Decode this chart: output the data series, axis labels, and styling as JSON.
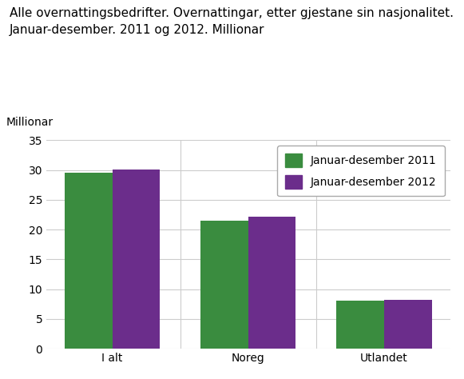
{
  "title_line1": "Alle overnattingsbedrifter. Overnattingar, etter gjestane sin nasjonalitet.",
  "title_line2": "Januar-desember. 2011 og 2012. Millionar",
  "ylabel": "Millionar",
  "categories": [
    "I alt",
    "Noreg",
    "Utlandet"
  ],
  "series": [
    {
      "label": "Januar-desember 2011",
      "color": "#3a8c3f",
      "values": [
        29.5,
        21.5,
        8.1
      ]
    },
    {
      "label": "Januar-desember 2012",
      "color": "#6b2d8b",
      "values": [
        30.1,
        22.1,
        8.2
      ]
    }
  ],
  "ylim": [
    0,
    35
  ],
  "yticks": [
    0,
    5,
    10,
    15,
    20,
    25,
    30,
    35
  ],
  "bar_width": 0.35,
  "background_color": "#ffffff",
  "grid_color": "#cccccc",
  "title_fontsize": 11,
  "label_fontsize": 10,
  "tick_fontsize": 10
}
